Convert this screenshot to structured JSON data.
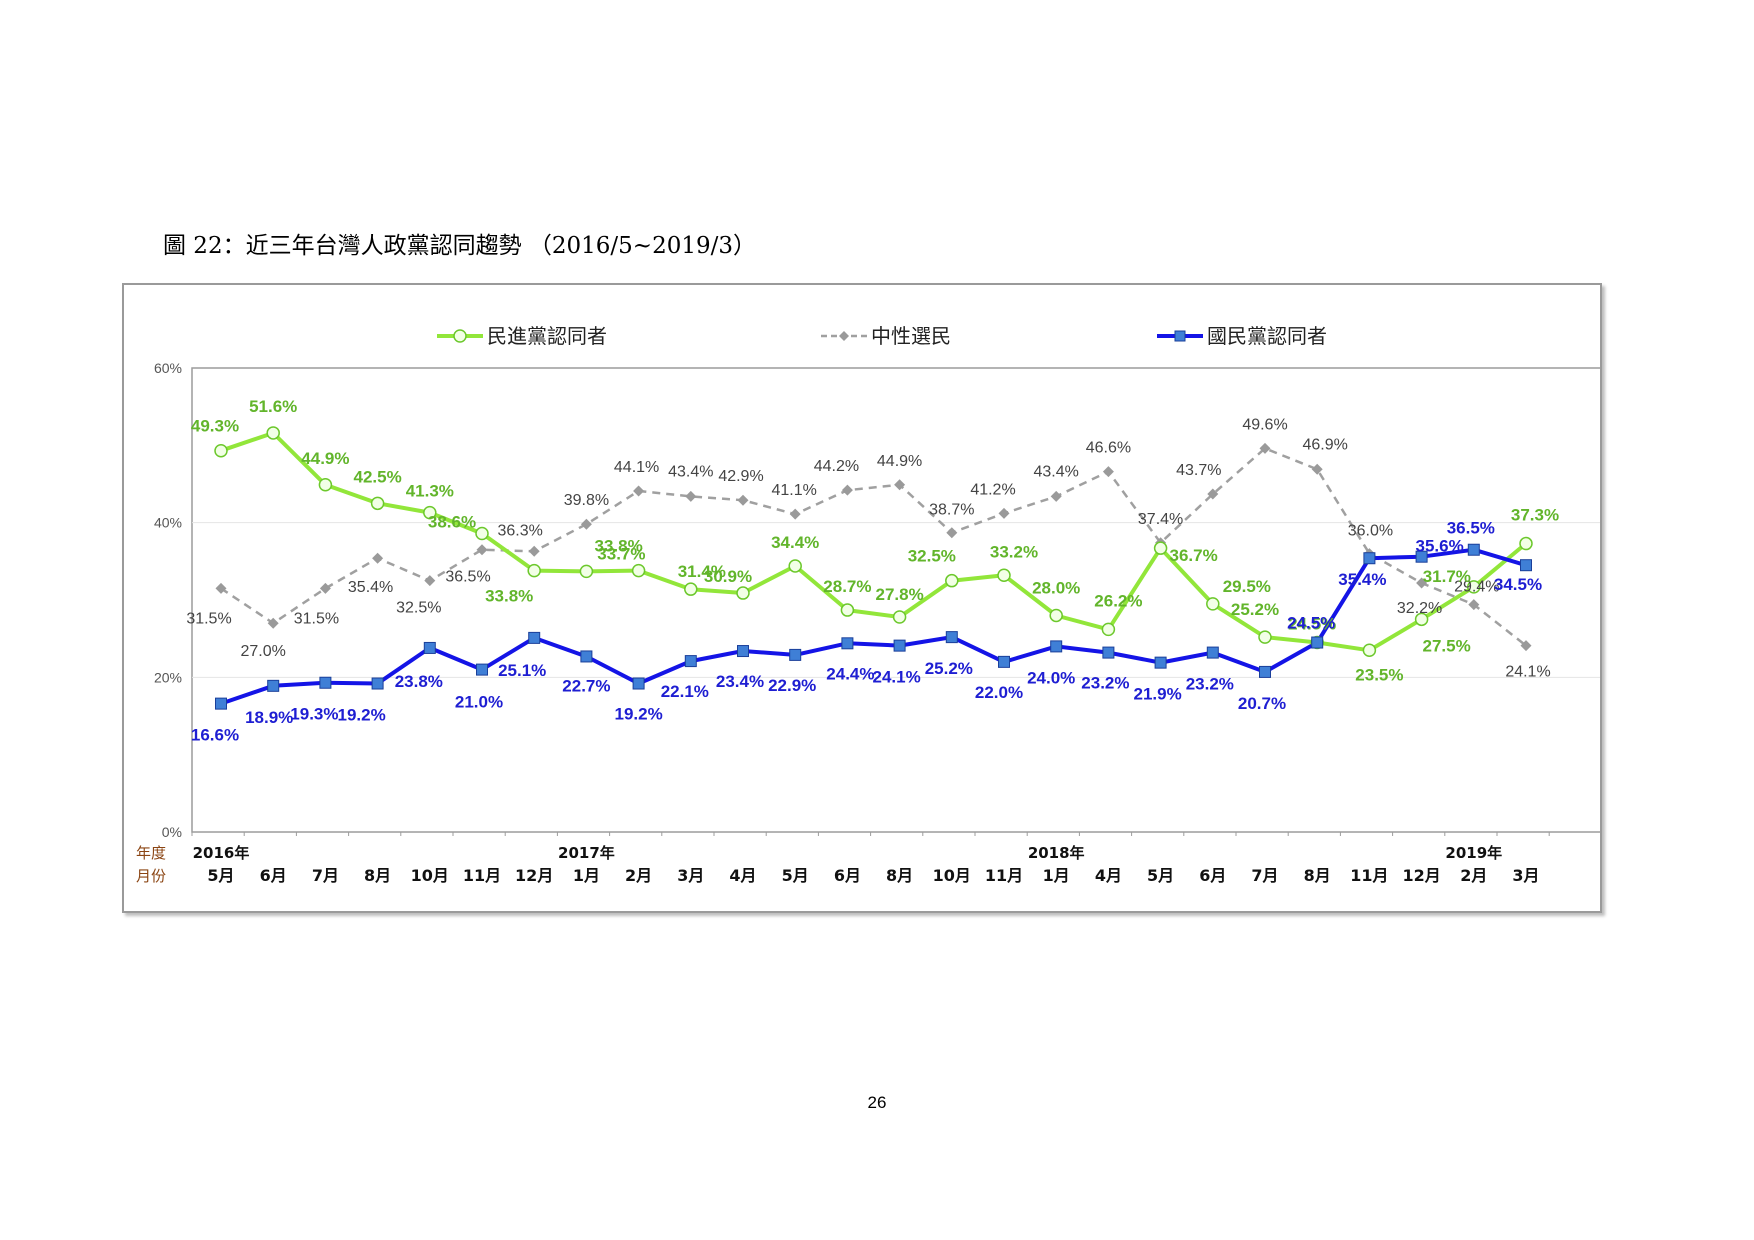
{
  "figure_title": "圖 22：近三年台灣人政黨認同趨勢 （2016/5~2019/3）",
  "page_number": "26",
  "colors": {
    "dpp": "#92e63a",
    "dpp_label": "#62b52b",
    "neutral": "#a0a0a0",
    "neutral_label": "#444444",
    "kmt": "#1414e6",
    "kmt_label": "#1e1ed2",
    "axis_label": "#8b4513"
  },
  "chart_data": {
    "type": "line",
    "title": "",
    "ylim": [
      0,
      60
    ],
    "y_ticks": [
      "0%",
      "20%",
      "40%",
      "60%"
    ],
    "y_tick_values": [
      0,
      20,
      40,
      60
    ],
    "grid": true,
    "legend_position": "top",
    "row_labels": {
      "year": "年度",
      "month": "月份"
    },
    "categories": [
      "5月",
      "6月",
      "7月",
      "8月",
      "10月",
      "11月",
      "12月",
      "1月",
      "2月",
      "3月",
      "4月",
      "5月",
      "6月",
      "8月",
      "10月",
      "11月",
      "1月",
      "4月",
      "5月",
      "6月",
      "7月",
      "8月",
      "11月",
      "12月",
      "2月",
      "3月"
    ],
    "year_labels": [
      {
        "index": 0,
        "label": "2016年"
      },
      {
        "index": 7,
        "label": "2017年"
      },
      {
        "index": 16,
        "label": "2018年"
      },
      {
        "index": 24,
        "label": "2019年"
      }
    ],
    "series": [
      {
        "name": "民進黨認同者",
        "key": "dpp",
        "values": [
          49.3,
          51.6,
          44.9,
          42.5,
          41.3,
          38.6,
          33.8,
          33.7,
          33.8,
          31.4,
          30.9,
          34.4,
          28.7,
          27.8,
          32.5,
          33.2,
          28.0,
          26.2,
          36.7,
          29.5,
          25.2,
          24.5,
          23.5,
          27.5,
          31.7,
          37.3
        ],
        "labels": [
          "49.3%",
          "51.6%",
          "44.9%",
          "42.5%",
          "41.3%",
          "38.6%",
          "33.8%",
          "33.7%",
          "33.8%",
          "31.4%",
          "30.9%",
          "34.4%",
          "28.7%",
          "27.8%",
          "32.5%",
          "33.2%",
          "28.0%",
          "26.2%",
          "36.7%",
          "29.5%",
          "25.2%",
          "24.5%",
          "23.5%",
          "27.5%",
          "31.7%",
          "37.3%"
        ]
      },
      {
        "name": "中性選民",
        "key": "neutral",
        "values": [
          31.5,
          27.0,
          31.5,
          35.4,
          32.5,
          36.5,
          36.3,
          39.8,
          44.1,
          43.4,
          42.9,
          41.1,
          44.2,
          44.9,
          38.7,
          41.2,
          43.4,
          46.6,
          37.4,
          43.7,
          49.6,
          46.9,
          36.0,
          32.2,
          29.4,
          24.1
        ],
        "labels": [
          "31.5%",
          "27.0%",
          "31.5%",
          "35.4%",
          "32.5%",
          "36.5%",
          "36.3%",
          "39.8%",
          "44.1%",
          "43.4%",
          "42.9%",
          "41.1%",
          "44.2%",
          "44.9%",
          "38.7%",
          "41.2%",
          "43.4%",
          "46.6%",
          "37.4%",
          "43.7%",
          "49.6%",
          "46.9%",
          "36.0%",
          "32.2%",
          "29.4%",
          "24.1%"
        ]
      },
      {
        "name": "國民黨認同者",
        "key": "kmt",
        "values": [
          16.6,
          18.9,
          19.3,
          19.2,
          23.8,
          21.0,
          25.1,
          22.7,
          19.2,
          22.1,
          23.4,
          22.9,
          24.4,
          24.1,
          25.2,
          22.0,
          24.0,
          23.2,
          21.9,
          23.2,
          20.7,
          24.5,
          35.4,
          35.6,
          36.5,
          34.5
        ],
        "labels": [
          "16.6%",
          "18.9%",
          "19.3%",
          "19.2%",
          "23.8%",
          "21.0%",
          "25.1%",
          "22.7%",
          "19.2%",
          "22.1%",
          "23.4%",
          "22.9%",
          "24.4%",
          "24.1%",
          "25.2%",
          "22.0%",
          "24.0%",
          "23.2%",
          "21.9%",
          "23.2%",
          "20.7%",
          "24.5%",
          "35.4%",
          "35.6%",
          "36.5%",
          "34.5%"
        ]
      }
    ]
  }
}
